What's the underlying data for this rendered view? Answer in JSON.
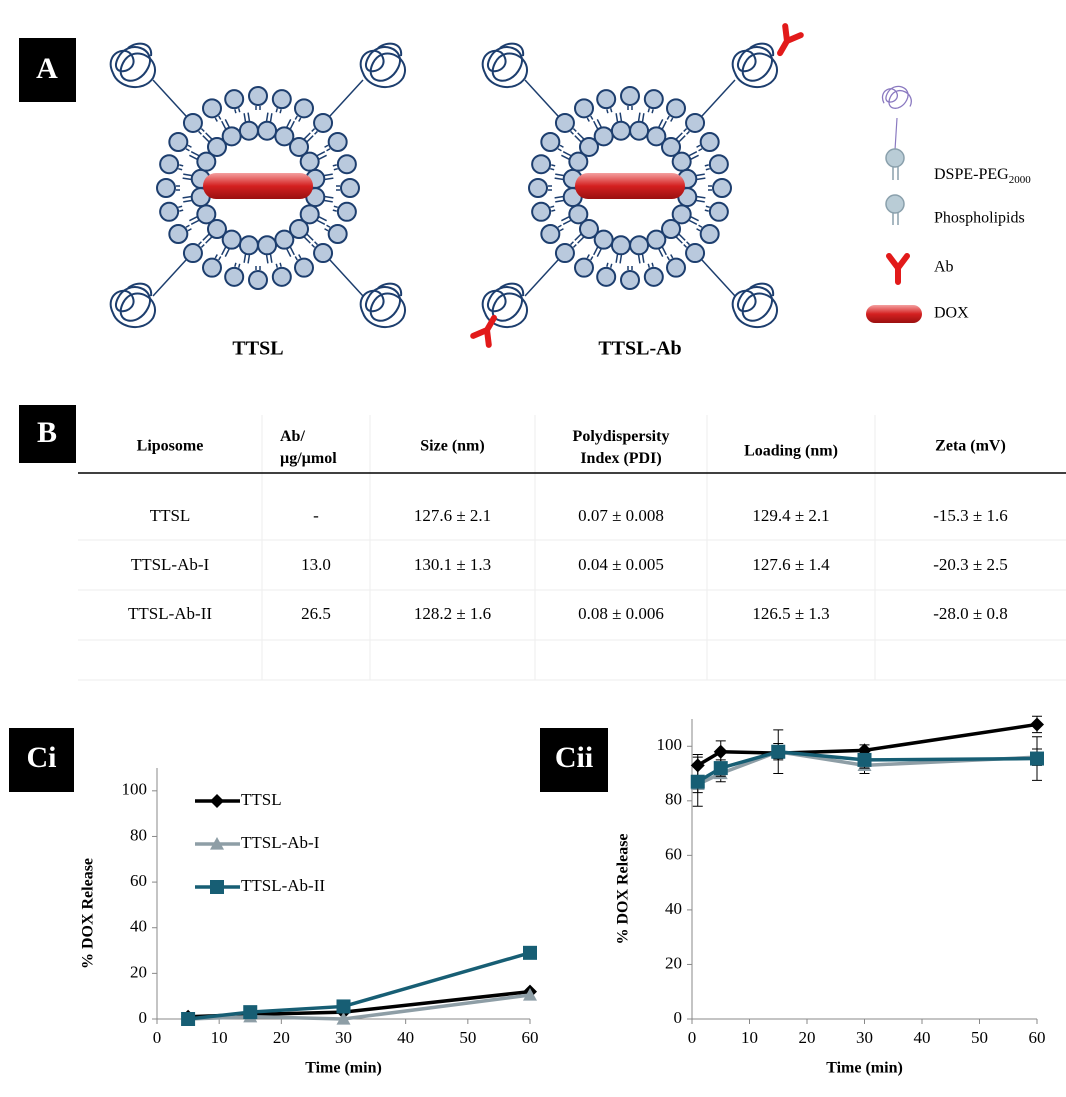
{
  "panel_a": {
    "label": "A",
    "structures": [
      {
        "label": "TTSL"
      },
      {
        "label": "TTSL-Ab"
      }
    ],
    "legend": [
      {
        "label": "DSPE-PEG",
        "label_sub": "2000"
      },
      {
        "label": "Phospholipids"
      },
      {
        "label": "Ab"
      },
      {
        "label": "DOX"
      }
    ]
  },
  "panel_b": {
    "label": "B",
    "table": {
      "header": [
        "Liposome",
        "Ab/ µg/µmol",
        "Size (nm)",
        "Polydispersity Index (PDI)",
        "Loading (nm)",
        "Zeta (mV)"
      ],
      "rows": [
        [
          "TTSL",
          "-",
          "127.6 ± 2.1",
          "0.07 ± 0.008",
          "129.4 ± 2.1",
          "-15.3 ± 1.6"
        ],
        [
          "TTSL-Ab-I",
          "13.0",
          "130.1 ± 1.3",
          "0.04 ± 0.005",
          "127.6 ± 1.4",
          "-20.3 ± 2.5"
        ],
        [
          "TTSL-Ab-II",
          "26.5",
          "128.2 ± 1.6",
          "0.08 ± 0.006",
          "126.5 ± 1.3",
          "-28.0 ± 0.8"
        ]
      ]
    }
  },
  "chart_data": [
    {
      "type": "line",
      "panel_label": "Ci",
      "x_label": "Time (min)",
      "y_label": "% DOX Release",
      "x": [
        5,
        15,
        30,
        60
      ],
      "xlim": [
        0,
        60
      ],
      "xticks": [
        0,
        10,
        20,
        30,
        40,
        50,
        60
      ],
      "ylim": [
        0,
        110
      ],
      "yticks": [
        0,
        20,
        40,
        60,
        80,
        100
      ],
      "legend": "upper left",
      "series": [
        {
          "name": "TTSL",
          "color": "#000000",
          "marker": "diamond",
          "values": [
            1,
            2,
            3,
            12
          ]
        },
        {
          "name": "TTSL-Ab-I",
          "color": "#8e9ea6",
          "marker": "triangle",
          "values": [
            0,
            1,
            0,
            10.5
          ]
        },
        {
          "name": "TTSL-Ab-II",
          "color": "#175e74",
          "marker": "square",
          "values": [
            0,
            3,
            5.5,
            29
          ]
        }
      ]
    },
    {
      "type": "line",
      "panel_label": "Cii",
      "x_label": "Time (min)",
      "y_label": "% DOX Release",
      "x": [
        1,
        5,
        15,
        30,
        60
      ],
      "xlim": [
        0,
        60
      ],
      "xticks": [
        0,
        10,
        20,
        30,
        40,
        50,
        60
      ],
      "ylim": [
        0,
        110
      ],
      "yticks": [
        0,
        20,
        40,
        60,
        80,
        100
      ],
      "series": [
        {
          "color": "#000000",
          "marker": "diamond",
          "values": [
            93,
            98,
            97.5,
            98.5,
            108
          ],
          "errors": [
            4,
            4,
            2,
            2,
            3
          ]
        },
        {
          "color": "#8e9ea6",
          "marker": "triangle",
          "values": [
            86,
            90,
            98,
            93,
            96
          ],
          "errors": [
            3,
            3,
            3,
            3,
            3
          ]
        },
        {
          "color": "#175e74",
          "marker": "square",
          "values": [
            87,
            92,
            98,
            95,
            95.5
          ],
          "errors": [
            9,
            3,
            8,
            3,
            8
          ]
        }
      ]
    }
  ]
}
